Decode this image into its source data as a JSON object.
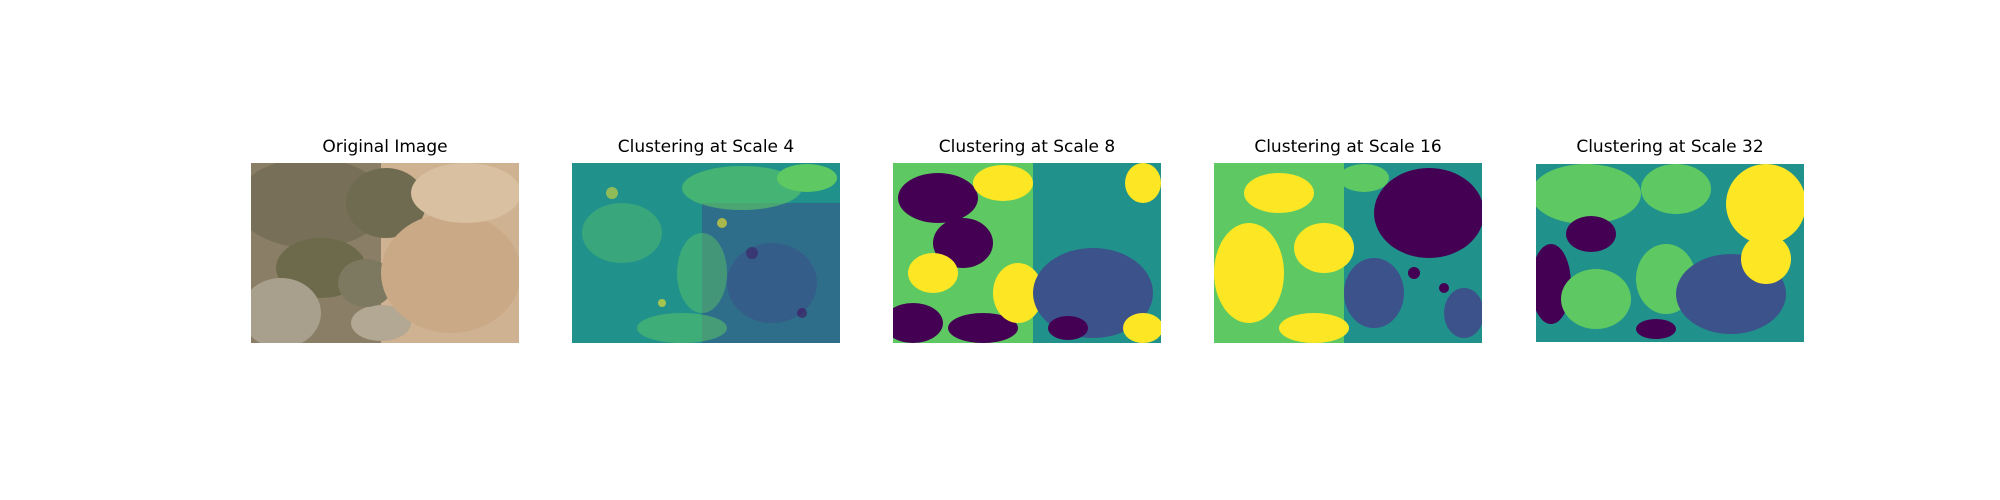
{
  "figure": {
    "panels": [
      {
        "title": "Original Image",
        "kind": "photo"
      },
      {
        "title": "Clustering at Scale 4",
        "kind": "cluster"
      },
      {
        "title": "Clustering at Scale 8",
        "kind": "cluster"
      },
      {
        "title": "Clustering at Scale 16",
        "kind": "cluster"
      },
      {
        "title": "Clustering at Scale 32",
        "kind": "cluster"
      }
    ],
    "cluster_colors": [
      "#440154",
      "#3b528b",
      "#21918c",
      "#5ec962",
      "#fde725"
    ],
    "photo_colors": [
      "#cdb090",
      "#8b7d66",
      "#6f6a52",
      "#a39a86"
    ]
  }
}
